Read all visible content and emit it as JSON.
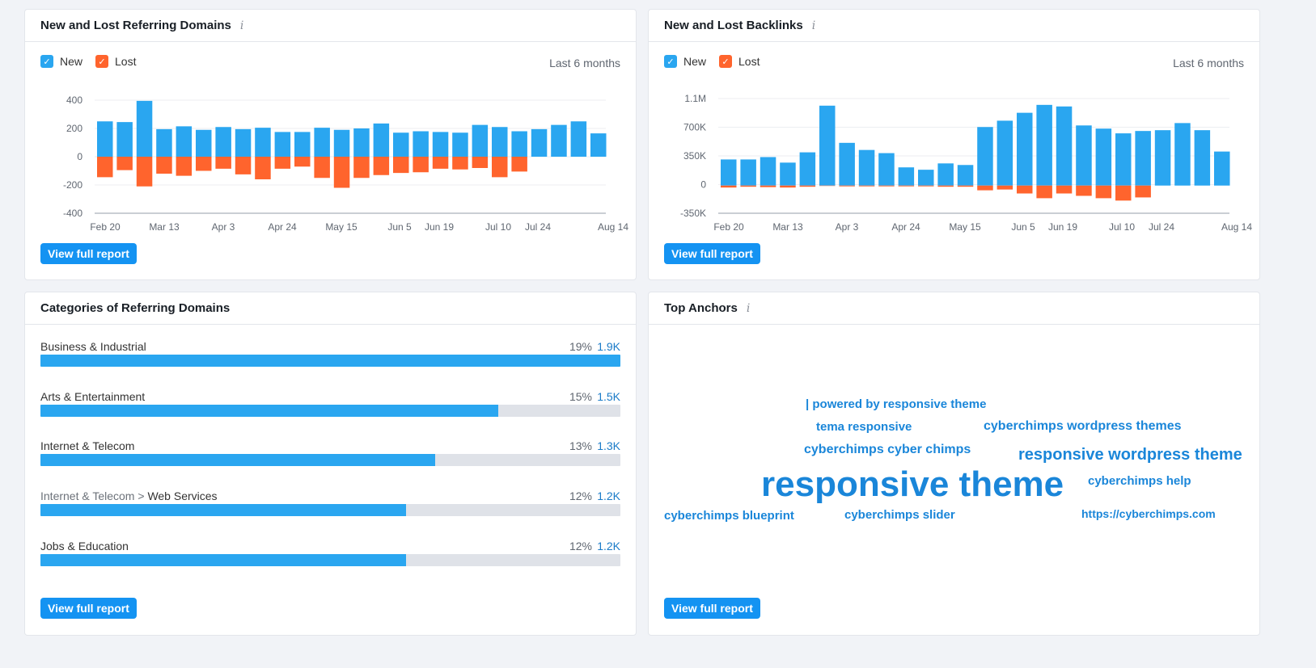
{
  "colors": {
    "new": "#2aa6f0",
    "lost": "#ff642d",
    "accent": "#1493f2",
    "link": "#1a86d9"
  },
  "referring_domains": {
    "title": "New and Lost Referring Domains",
    "info_icon": "i",
    "legend": {
      "new": "New",
      "lost": "Lost"
    },
    "period": "Last 6 months",
    "button": "View full report"
  },
  "backlinks": {
    "title": "New and Lost Backlinks",
    "info_icon": "i",
    "legend": {
      "new": "New",
      "lost": "Lost"
    },
    "period": "Last 6 months",
    "button": "View full report"
  },
  "categories": {
    "title": "Categories of Referring Domains",
    "button": "View full report",
    "items": [
      {
        "prefix": "",
        "name": "Business & Industrial",
        "pct": "19%",
        "count": "1.9K",
        "fill": 1.0
      },
      {
        "prefix": "",
        "name": "Arts & Entertainment",
        "pct": "15%",
        "count": "1.5K",
        "fill": 0.79
      },
      {
        "prefix": "",
        "name": "Internet & Telecom",
        "pct": "13%",
        "count": "1.3K",
        "fill": 0.68
      },
      {
        "prefix": "Internet & Telecom > ",
        "name": "Web Services",
        "pct": "12%",
        "count": "1.2K",
        "fill": 0.63
      },
      {
        "prefix": "",
        "name": "Jobs & Education",
        "pct": "12%",
        "count": "1.2K",
        "fill": 0.63
      }
    ]
  },
  "top_anchors": {
    "title": "Top Anchors",
    "info_icon": "i",
    "button": "View full report",
    "words": [
      "| powered by responsive theme",
      "tema responsive",
      "cyberchimps wordpress themes",
      "cyberchimps cyber chimps",
      "responsive wordpress theme",
      "responsive theme",
      "cyberchimps help",
      "cyberchimps blueprint",
      "cyberchimps slider",
      "https://cyberchimps.com"
    ]
  },
  "chart_data": [
    {
      "type": "bar",
      "title": "New and Lost Referring Domains",
      "x_tick_labels": [
        "Feb 20",
        "Mar 13",
        "Apr 3",
        "Apr 24",
        "May 15",
        "Jun 5",
        "Jun 19",
        "Jul 10",
        "Jul 24",
        "Aug 14"
      ],
      "y_tick_labels": [
        "400",
        "200",
        "0",
        "-200",
        "-400"
      ],
      "ylim": [
        -400,
        400
      ],
      "series": [
        {
          "name": "New",
          "values": [
            250,
            245,
            395,
            195,
            215,
            190,
            210,
            195,
            205,
            175,
            175,
            205,
            190,
            200,
            235,
            170,
            180,
            175,
            170,
            225,
            210,
            180,
            195,
            225,
            250,
            165
          ]
        },
        {
          "name": "Lost",
          "values": [
            -145,
            -95,
            -210,
            -120,
            -135,
            -100,
            -85,
            -125,
            -160,
            -85,
            -70,
            -150,
            -220,
            -150,
            -130,
            -115,
            -110,
            -85,
            -90,
            -80,
            -145,
            -105,
            0,
            0,
            0,
            0
          ]
        }
      ]
    },
    {
      "type": "bar",
      "title": "New and Lost Backlinks",
      "x_tick_labels": [
        "Feb 20",
        "Mar 13",
        "Apr 3",
        "Apr 24",
        "May 15",
        "Jun 5",
        "Jun 19",
        "Jul 10",
        "Jul 24",
        "Aug 14"
      ],
      "y_tick_labels": [
        "1.1M",
        "700K",
        "350K",
        "0",
        "-350K"
      ],
      "ylim": [
        -350000,
        1100000
      ],
      "series": [
        {
          "name": "New",
          "values": [
            330000,
            330000,
            360000,
            290000,
            420000,
            1010000,
            540000,
            450000,
            410000,
            230000,
            200000,
            280000,
            260000,
            740000,
            820000,
            920000,
            1020000,
            1000000,
            760000,
            720000,
            660000,
            690000,
            700000,
            790000,
            700000,
            430000
          ]
        },
        {
          "name": "Lost",
          "values": [
            -25000,
            -15000,
            -20000,
            -25000,
            -15000,
            -5000,
            -10000,
            -10000,
            -10000,
            -10000,
            -10000,
            -15000,
            -15000,
            -60000,
            -50000,
            -100000,
            -160000,
            -100000,
            -130000,
            -160000,
            -190000,
            -150000,
            0,
            0,
            0,
            0
          ]
        }
      ]
    }
  ]
}
